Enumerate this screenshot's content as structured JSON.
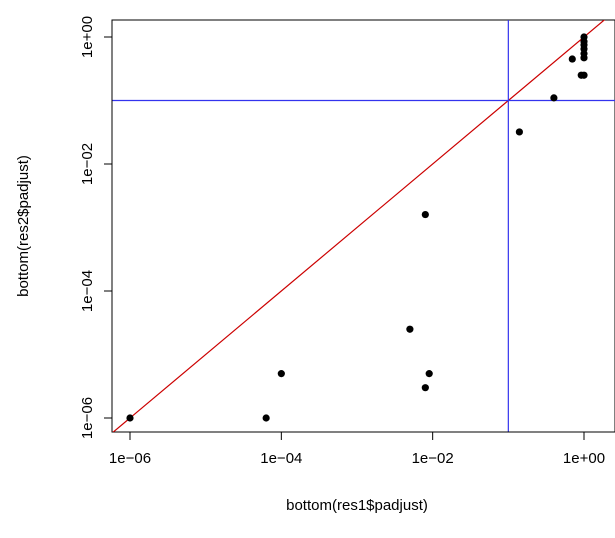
{
  "chart_data": {
    "type": "scatter",
    "title": "",
    "xlabel": "bottom(res1$padjust)",
    "ylabel": "bottom(res2$padjust)",
    "x_scale": "log10",
    "y_scale": "log10",
    "xlim": [
      1e-06,
      1
    ],
    "ylim": [
      1e-06,
      1
    ],
    "x_ticks": [
      {
        "value": 1e-06,
        "label": "1e−06"
      },
      {
        "value": 0.0001,
        "label": "1e−04"
      },
      {
        "value": 0.01,
        "label": "1e−02"
      },
      {
        "value": 1,
        "label": "1e+00"
      }
    ],
    "y_ticks": [
      {
        "value": 1e-06,
        "label": "1e−06"
      },
      {
        "value": 0.0001,
        "label": "1e−04"
      },
      {
        "value": 0.01,
        "label": "1e−02"
      },
      {
        "value": 1,
        "label": "1e+00"
      }
    ],
    "grid": false,
    "point_color": "#000000",
    "points": [
      {
        "x": 1e-06,
        "y": 1e-06
      },
      {
        "x": 6.3e-05,
        "y": 1e-06
      },
      {
        "x": 0.0001,
        "y": 5e-06
      },
      {
        "x": 0.005,
        "y": 2.5e-05
      },
      {
        "x": 0.008,
        "y": 0.0016
      },
      {
        "x": 0.008,
        "y": 3e-06
      },
      {
        "x": 0.009,
        "y": 5e-06
      },
      {
        "x": 0.14,
        "y": 0.032
      },
      {
        "x": 0.4,
        "y": 0.11
      },
      {
        "x": 0.7,
        "y": 0.45
      },
      {
        "x": 0.92,
        "y": 0.25
      },
      {
        "x": 1,
        "y": 0.25
      },
      {
        "x": 1,
        "y": 0.47
      },
      {
        "x": 1,
        "y": 0.55
      },
      {
        "x": 1,
        "y": 0.65
      },
      {
        "x": 1,
        "y": 0.75
      },
      {
        "x": 1,
        "y": 0.85
      },
      {
        "x": 1,
        "y": 1
      }
    ],
    "reference_lines": [
      {
        "kind": "diagonal",
        "slope": 1,
        "intercept": 0,
        "color": "#cc0000"
      },
      {
        "kind": "vertical",
        "x": 0.1,
        "color": "#3333ee"
      },
      {
        "kind": "horizontal",
        "y": 0.1,
        "color": "#3333ee"
      }
    ]
  }
}
